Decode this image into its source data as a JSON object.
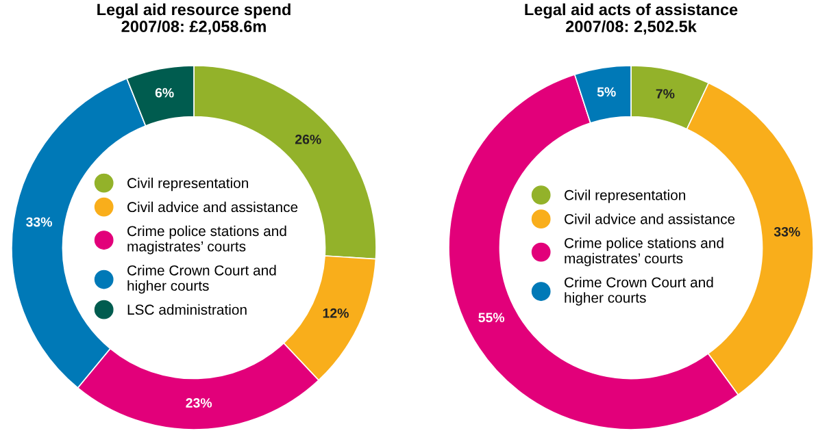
{
  "chart_data": [
    {
      "type": "donut",
      "title": "Legal aid resource spend\n2007/08: £2,058.6m",
      "categories": [
        "Civil representation",
        "Civil advice and assistance",
        "Crime police stations and\nmagistrates’ courts",
        "Crime Crown Court and\nhigher courts",
        "LSC administration"
      ],
      "values": [
        26,
        12,
        23,
        33,
        6
      ],
      "value_labels": [
        "26%",
        "12%",
        "23%",
        "33%",
        "6%"
      ],
      "colors": [
        "#93b22a",
        "#f9ae1b",
        "#e2007a",
        "#0079b7",
        "#005c4f"
      ],
      "legend": "center"
    },
    {
      "type": "donut",
      "title": "Legal aid acts of assistance\n2007/08: 2,502.5k",
      "categories": [
        "Civil representation",
        "Civil advice and assistance",
        "Crime police stations and\nmagistrates’ courts",
        "Crime Crown Court and\nhigher courts"
      ],
      "values": [
        7,
        33,
        55,
        5
      ],
      "value_labels": [
        "7%",
        "33%",
        "55%",
        "5%"
      ],
      "colors": [
        "#93b22a",
        "#f9ae1b",
        "#e2007a",
        "#0079b7"
      ],
      "legend": "center"
    }
  ]
}
